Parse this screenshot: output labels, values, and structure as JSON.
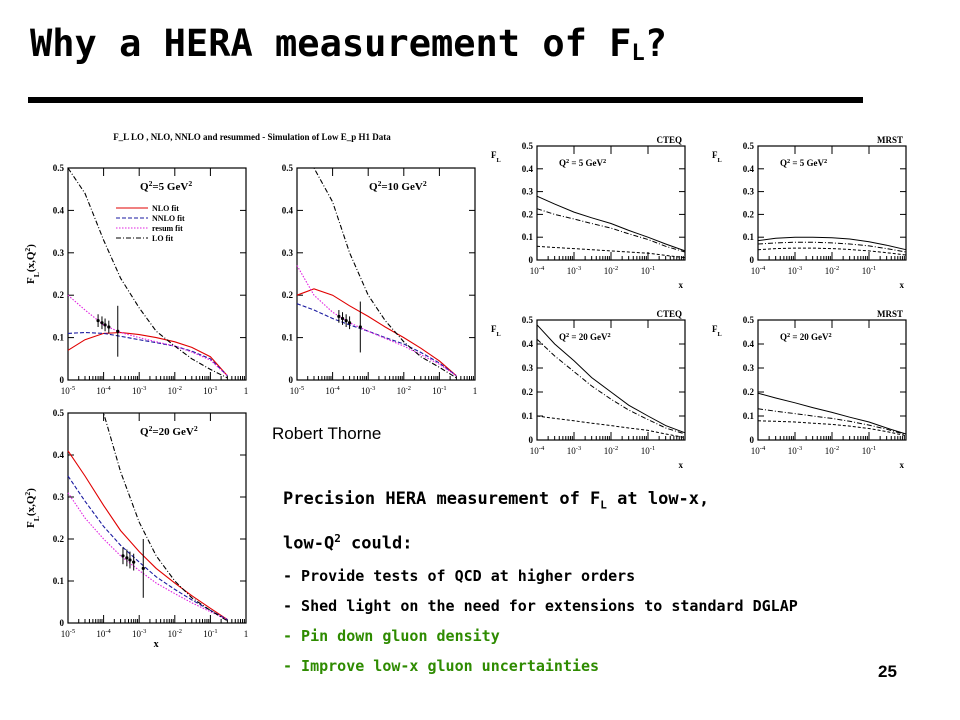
{
  "slide": {
    "title_main": "Why a HERA measurement of F",
    "title_sub": "L",
    "title_end": "?",
    "credit": "Robert Thorne",
    "page_number": "25",
    "headline": {
      "part1": "Precision HERA measurement of F",
      "sub1": "L",
      "part2": " at low-x,",
      "part3": "low-Q",
      "sup1": "2",
      "part4": " could:"
    },
    "bullets": [
      "-  Provide tests of QCD at higher orders",
      "- Shed light on the need for extensions to standard DGLAP",
      "- Pin down gluon density",
      "- Improve low-x gluon uncertainties"
    ],
    "bullet_colors": [
      "#000000",
      "#000000",
      "#2e8b00",
      "#2e8b00"
    ]
  },
  "figure": {
    "title": "F_L LO , NLO, NNLO and resummed - Simulation of Low E_p H1 Data"
  },
  "chart_data": [
    {
      "type": "line",
      "panel": "H1 simulation",
      "label": "Q^2=5 GeV^2",
      "ylabel": "F_L(x,Q^2)",
      "xlabel": "",
      "xscale": "log",
      "xlim": [
        1e-05,
        1
      ],
      "ylim": [
        0,
        0.5
      ],
      "xticks": [
        "10^-5",
        "10^-4",
        "10^-3",
        "10^-2",
        "10^-1",
        "1"
      ],
      "yticks": [
        "0",
        "0.1",
        "0.2",
        "0.3",
        "0.4",
        "0.5"
      ],
      "legend": [
        "NLO fit",
        "NNLO fit",
        "resum fit",
        "LO fit"
      ],
      "x": [
        1e-05,
        3e-05,
        0.0001,
        0.0003,
        0.001,
        0.003,
        0.01,
        0.03,
        0.1,
        0.3
      ],
      "series": [
        {
          "name": "NLO fit",
          "values": [
            0.07,
            0.095,
            0.11,
            0.112,
            0.107,
            0.1,
            0.09,
            0.077,
            0.055,
            0.01
          ]
        },
        {
          "name": "NNLO fit",
          "values": [
            0.11,
            0.112,
            0.11,
            0.103,
            0.095,
            0.088,
            0.08,
            0.068,
            0.05,
            0.01
          ]
        },
        {
          "name": "resum fit",
          "values": [
            0.2,
            0.165,
            0.13,
            0.112,
            0.1,
            0.09,
            0.08,
            0.066,
            0.047,
            0.01
          ]
        },
        {
          "name": "LO fit",
          "values": [
            0.5,
            0.44,
            0.33,
            0.24,
            0.17,
            0.115,
            0.08,
            0.05,
            0.025,
            0.005
          ]
        }
      ],
      "data_points": [
        {
          "x": 7e-05,
          "y": 0.14,
          "err": 0.015
        },
        {
          "x": 9e-05,
          "y": 0.135,
          "err": 0.015
        },
        {
          "x": 0.00011,
          "y": 0.13,
          "err": 0.015
        },
        {
          "x": 0.00014,
          "y": 0.125,
          "err": 0.015
        },
        {
          "x": 0.00025,
          "y": 0.115,
          "err": 0.06
        }
      ]
    },
    {
      "type": "line",
      "panel": "H1 simulation",
      "label": "Q^2=10 GeV^2",
      "ylabel": "",
      "xlabel": "",
      "xscale": "log",
      "xlim": [
        1e-05,
        1
      ],
      "ylim": [
        0,
        0.5
      ],
      "xticks": [
        "10^-5",
        "10^-4",
        "10^-3",
        "10^-2",
        "10^-1",
        "1"
      ],
      "yticks": [
        "0",
        "0.1",
        "0.2",
        "0.3",
        "0.4",
        "0.5"
      ],
      "x": [
        1e-05,
        3e-05,
        0.0001,
        0.0003,
        0.001,
        0.003,
        0.01,
        0.03,
        0.1,
        0.3
      ],
      "series": [
        {
          "name": "NLO fit",
          "values": [
            0.2,
            0.215,
            0.2,
            0.175,
            0.15,
            0.125,
            0.1,
            0.075,
            0.045,
            0.01
          ]
        },
        {
          "name": "NNLO fit",
          "values": [
            0.18,
            0.165,
            0.145,
            0.13,
            0.115,
            0.1,
            0.085,
            0.065,
            0.04,
            0.01
          ]
        },
        {
          "name": "resum fit",
          "values": [
            0.27,
            0.2,
            0.16,
            0.135,
            0.115,
            0.098,
            0.08,
            0.06,
            0.037,
            0.01
          ]
        },
        {
          "name": "LO fit",
          "values": [
            0.5,
            0.5,
            0.42,
            0.3,
            0.2,
            0.14,
            0.09,
            0.055,
            0.03,
            0.005
          ]
        }
      ],
      "data_points": [
        {
          "x": 0.00015,
          "y": 0.15,
          "err": 0.015
        },
        {
          "x": 0.00019,
          "y": 0.145,
          "err": 0.015
        },
        {
          "x": 0.00024,
          "y": 0.14,
          "err": 0.015
        },
        {
          "x": 0.0003,
          "y": 0.135,
          "err": 0.015
        },
        {
          "x": 0.0006,
          "y": 0.125,
          "err": 0.06
        }
      ]
    },
    {
      "type": "line",
      "panel": "H1 simulation",
      "label": "Q^2=20 GeV^2",
      "ylabel": "F_L(x,Q^2)",
      "xlabel": "x",
      "xscale": "log",
      "xlim": [
        1e-05,
        1
      ],
      "ylim": [
        0,
        0.5
      ],
      "xticks": [
        "10^-5",
        "10^-4",
        "10^-3",
        "10^-2",
        "10^-1",
        "1"
      ],
      "yticks": [
        "0",
        "0.1",
        "0.2",
        "0.3",
        "0.4",
        "0.5"
      ],
      "x": [
        1e-05,
        3e-05,
        0.0001,
        0.0003,
        0.001,
        0.003,
        0.01,
        0.03,
        0.1,
        0.3
      ],
      "series": [
        {
          "name": "NLO fit",
          "values": [
            0.41,
            0.35,
            0.28,
            0.22,
            0.17,
            0.13,
            0.095,
            0.065,
            0.035,
            0.008
          ]
        },
        {
          "name": "NNLO fit",
          "values": [
            0.35,
            0.29,
            0.23,
            0.185,
            0.145,
            0.11,
            0.08,
            0.055,
            0.03,
            0.008
          ]
        },
        {
          "name": "resum fit",
          "values": [
            0.31,
            0.25,
            0.2,
            0.16,
            0.125,
            0.095,
            0.07,
            0.048,
            0.027,
            0.008
          ]
        },
        {
          "name": "LO fit",
          "values": [
            0.5,
            0.5,
            0.5,
            0.36,
            0.24,
            0.16,
            0.1,
            0.06,
            0.03,
            0.005
          ]
        }
      ],
      "data_points": [
        {
          "x": 0.00035,
          "y": 0.16,
          "err": 0.02
        },
        {
          "x": 0.00045,
          "y": 0.155,
          "err": 0.02
        },
        {
          "x": 0.00055,
          "y": 0.15,
          "err": 0.02
        },
        {
          "x": 0.0007,
          "y": 0.145,
          "err": 0.02
        },
        {
          "x": 0.0013,
          "y": 0.13,
          "err": 0.07
        }
      ]
    },
    {
      "type": "line",
      "panel": "CTEQ",
      "label": "Q^2 = 5 GeV^2",
      "ylabel": "F_L",
      "xlabel": "x",
      "xscale": "log",
      "xlim": [
        0.0001,
        1
      ],
      "ylim": [
        0,
        0.5
      ],
      "xticks": [
        "10^-4",
        "10^-3",
        "10^-2",
        "10^-1"
      ],
      "yticks": [
        "0",
        "0.1",
        "0.2",
        "0.3",
        "0.4",
        "0.5"
      ],
      "x": [
        0.0001,
        0.0003,
        0.001,
        0.003,
        0.01,
        0.03,
        0.1,
        0.3,
        1
      ],
      "series": [
        {
          "values": [
            0.28,
            0.245,
            0.21,
            0.185,
            0.16,
            0.13,
            0.1,
            0.07,
            0.04
          ]
        },
        {
          "values": [
            0.225,
            0.2,
            0.18,
            0.16,
            0.14,
            0.115,
            0.09,
            0.06,
            0.035
          ]
        },
        {
          "values": [
            0.06,
            0.055,
            0.05,
            0.045,
            0.04,
            0.035,
            0.03,
            0.02,
            0.01
          ]
        }
      ]
    },
    {
      "type": "line",
      "panel": "MRST",
      "label": "Q^2 = 5 GeV^2",
      "ylabel": "F_L",
      "xlabel": "x",
      "xscale": "log",
      "xlim": [
        0.0001,
        1
      ],
      "ylim": [
        0,
        0.5
      ],
      "xticks": [
        "10^-4",
        "10^-3",
        "10^-2",
        "10^-1"
      ],
      "yticks": [
        "0",
        "0.1",
        "0.2",
        "0.3",
        "0.4",
        "0.5"
      ],
      "x": [
        0.0001,
        0.0003,
        0.001,
        0.003,
        0.01,
        0.03,
        0.1,
        0.3,
        1
      ],
      "series": [
        {
          "values": [
            0.085,
            0.095,
            0.1,
            0.1,
            0.098,
            0.092,
            0.08,
            0.065,
            0.045
          ]
        },
        {
          "values": [
            0.07,
            0.075,
            0.078,
            0.078,
            0.075,
            0.07,
            0.062,
            0.05,
            0.035
          ]
        },
        {
          "values": [
            0.045,
            0.05,
            0.052,
            0.052,
            0.05,
            0.046,
            0.04,
            0.032,
            0.022
          ]
        }
      ]
    },
    {
      "type": "line",
      "panel": "CTEQ",
      "label": "Q^2 = 20 GeV^2",
      "ylabel": "F_L",
      "xlabel": "x",
      "xscale": "log",
      "xlim": [
        0.0001,
        1
      ],
      "ylim": [
        0,
        0.5
      ],
      "xticks": [
        "10^-4",
        "10^-3",
        "10^-2",
        "10^-1"
      ],
      "yticks": [
        "0",
        "0.1",
        "0.2",
        "0.3",
        "0.4",
        "0.5"
      ],
      "x": [
        0.0001,
        0.0003,
        0.001,
        0.003,
        0.01,
        0.03,
        0.1,
        0.3,
        1
      ],
      "series": [
        {
          "values": [
            0.48,
            0.4,
            0.33,
            0.26,
            0.2,
            0.145,
            0.1,
            0.06,
            0.03
          ]
        },
        {
          "values": [
            0.42,
            0.35,
            0.285,
            0.225,
            0.17,
            0.125,
            0.085,
            0.05,
            0.025
          ]
        },
        {
          "values": [
            0.1,
            0.09,
            0.08,
            0.07,
            0.06,
            0.05,
            0.04,
            0.025,
            0.01
          ]
        }
      ]
    },
    {
      "type": "line",
      "panel": "MRST",
      "label": "Q^2 = 20 GeV^2",
      "ylabel": "F_L",
      "xlabel": "x",
      "xscale": "log",
      "xlim": [
        0.0001,
        1
      ],
      "ylim": [
        0,
        0.5
      ],
      "xticks": [
        "10^-4",
        "10^-3",
        "10^-2",
        "10^-1"
      ],
      "yticks": [
        "0",
        "0.1",
        "0.2",
        "0.3",
        "0.4",
        "0.5"
      ],
      "x": [
        0.0001,
        0.0003,
        0.001,
        0.003,
        0.01,
        0.03,
        0.1,
        0.3,
        1
      ],
      "series": [
        {
          "values": [
            0.195,
            0.175,
            0.155,
            0.135,
            0.115,
            0.095,
            0.075,
            0.05,
            0.025
          ]
        },
        {
          "values": [
            0.13,
            0.12,
            0.11,
            0.1,
            0.09,
            0.078,
            0.062,
            0.045,
            0.022
          ]
        },
        {
          "values": [
            0.08,
            0.078,
            0.075,
            0.07,
            0.065,
            0.058,
            0.048,
            0.035,
            0.018
          ]
        }
      ]
    }
  ]
}
